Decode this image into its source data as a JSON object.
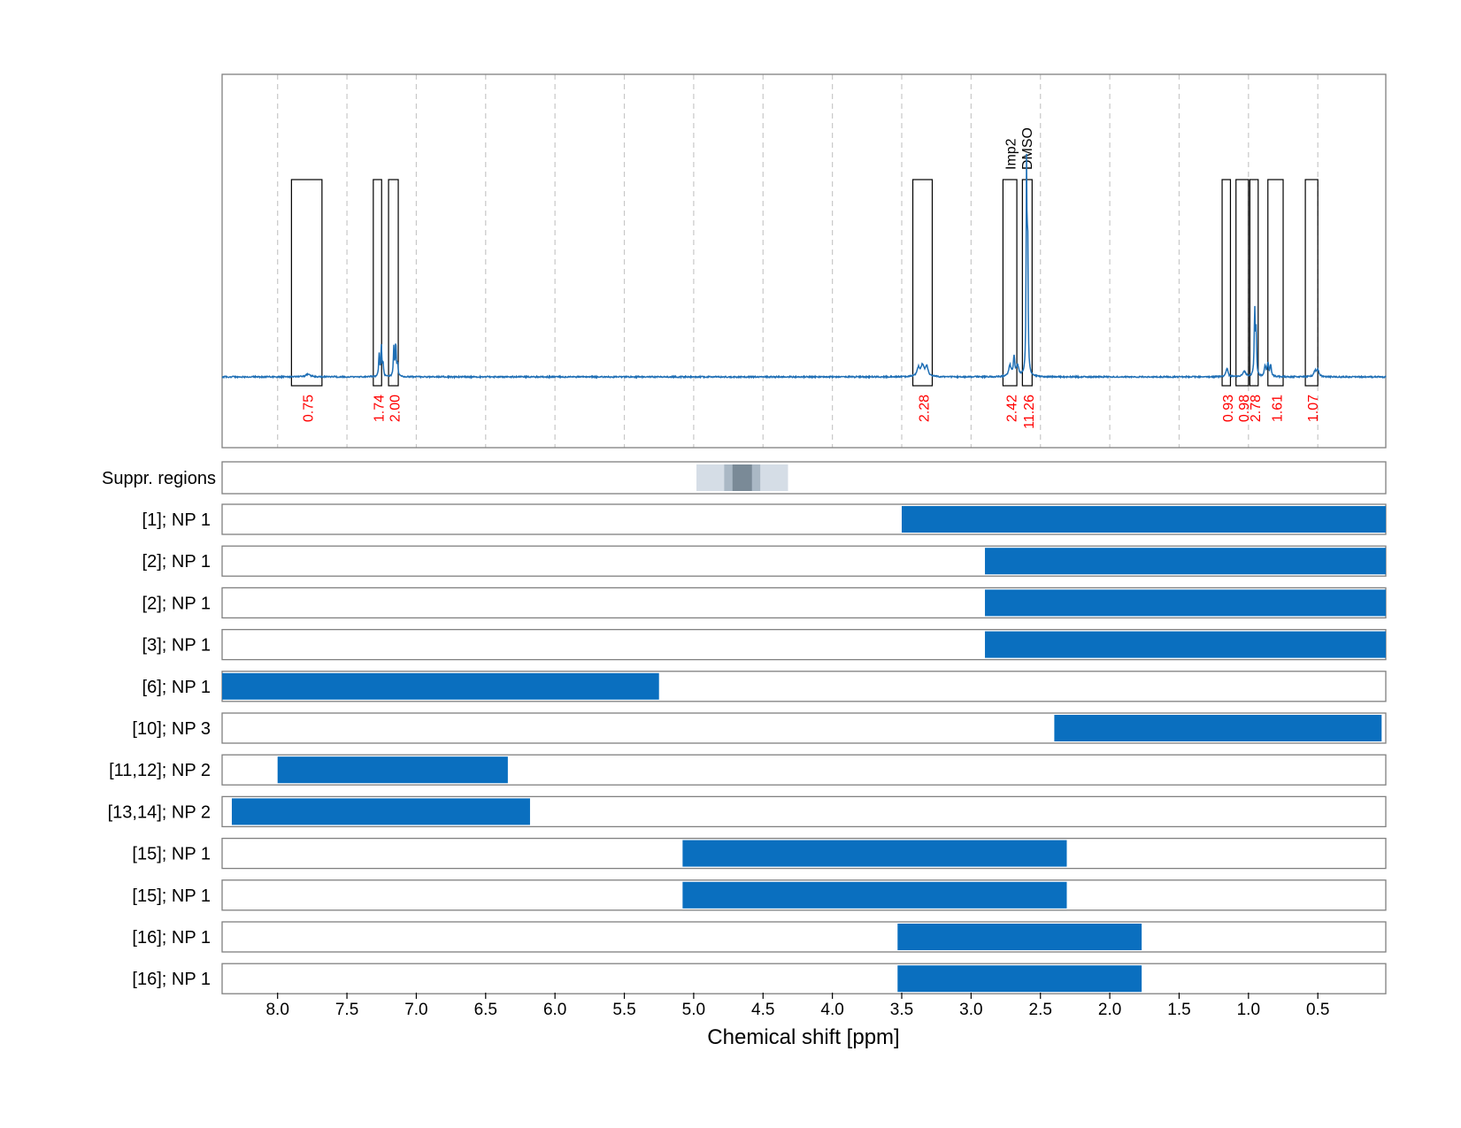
{
  "chart_data": {
    "type": "nmr-spectrum-with-range-bars",
    "xlabel": "Chemical shift [ppm]",
    "xlim": [
      8.4,
      0.01
    ],
    "x_reversed": true,
    "x_ticks": [
      8.0,
      7.5,
      7.0,
      6.5,
      6.0,
      5.5,
      5.0,
      4.5,
      4.0,
      3.5,
      3.0,
      2.5,
      2.0,
      1.5,
      1.0,
      0.5
    ],
    "x_tick_labels": [
      "8.0",
      "7.5",
      "7.0",
      "6.5",
      "6.0",
      "5.5",
      "5.0",
      "4.5",
      "4.0",
      "3.5",
      "3.0",
      "2.5",
      "2.0",
      "1.5",
      "1.0",
      "0.5"
    ],
    "grid": true,
    "spectrum": {
      "color": "#1f6fb5",
      "peaks": [
        {
          "x": 7.78,
          "h": 0.012,
          "w": 0.02
        },
        {
          "x": 7.268,
          "h": 0.1,
          "w": 0.004
        },
        {
          "x": 7.252,
          "h": 0.14,
          "w": 0.004
        },
        {
          "x": 7.24,
          "h": 0.06,
          "w": 0.004
        },
        {
          "x": 7.162,
          "h": 0.13,
          "w": 0.004
        },
        {
          "x": 7.148,
          "h": 0.15,
          "w": 0.004
        },
        {
          "x": 7.135,
          "h": 0.06,
          "w": 0.004
        },
        {
          "x": 3.38,
          "h": 0.04,
          "w": 0.012
        },
        {
          "x": 3.35,
          "h": 0.05,
          "w": 0.012
        },
        {
          "x": 3.32,
          "h": 0.045,
          "w": 0.012
        },
        {
          "x": 2.72,
          "h": 0.05,
          "w": 0.01
        },
        {
          "x": 2.69,
          "h": 0.085,
          "w": 0.006
        },
        {
          "x": 2.665,
          "h": 0.05,
          "w": 0.01
        },
        {
          "x": 2.6,
          "h": 0.93,
          "w": 0.0035
        },
        {
          "x": 2.592,
          "h": 0.6,
          "w": 0.0035
        },
        {
          "x": 1.155,
          "h": 0.04,
          "w": 0.008
        },
        {
          "x": 1.03,
          "h": 0.025,
          "w": 0.012
        },
        {
          "x": 0.955,
          "h": 0.3,
          "w": 0.004
        },
        {
          "x": 0.945,
          "h": 0.2,
          "w": 0.004
        },
        {
          "x": 0.88,
          "h": 0.05,
          "w": 0.006
        },
        {
          "x": 0.86,
          "h": 0.06,
          "w": 0.006
        },
        {
          "x": 0.84,
          "h": 0.05,
          "w": 0.006
        },
        {
          "x": 0.52,
          "h": 0.025,
          "w": 0.01
        },
        {
          "x": 0.5,
          "h": 0.03,
          "w": 0.01
        }
      ]
    },
    "integration_regions": [
      {
        "x1": 7.9,
        "x2": 7.68,
        "value": "0.75"
      },
      {
        "x1": 7.31,
        "x2": 7.25,
        "value": "1.74"
      },
      {
        "x1": 7.2,
        "x2": 7.13,
        "value": "2.00"
      },
      {
        "x1": 3.42,
        "x2": 3.28,
        "value": "2.28"
      },
      {
        "x1": 2.77,
        "x2": 2.67,
        "value": "2.42"
      },
      {
        "x1": 2.63,
        "x2": 2.56,
        "value": "11.26"
      },
      {
        "x1": 1.19,
        "x2": 1.13,
        "value": "0.93"
      },
      {
        "x1": 1.09,
        "x2": 1.0,
        "value": "0.98"
      },
      {
        "x1": 0.99,
        "x2": 0.93,
        "value": "2.78"
      },
      {
        "x1": 0.86,
        "x2": 0.75,
        "value": "1.61"
      },
      {
        "x1": 0.59,
        "x2": 0.5,
        "value": "1.07"
      }
    ],
    "peak_annotations": [
      {
        "x": 2.72,
        "label": "Imp2"
      },
      {
        "x": 2.6,
        "label": "DMSO"
      }
    ],
    "suppression_region": {
      "label": "Suppr. regions",
      "bands": [
        {
          "x1": 4.98,
          "x2": 4.32,
          "color": "#d5dde6"
        },
        {
          "x1": 4.78,
          "x2": 4.52,
          "color": "#aab8c5"
        },
        {
          "x1": 4.72,
          "x2": 4.58,
          "color": "#7a8a97"
        }
      ]
    },
    "range_bars": [
      {
        "label": "[1]; NP 1",
        "x1": 3.5,
        "x2": 0.01
      },
      {
        "label": "[2]; NP 1",
        "x1": 2.9,
        "x2": 0.01
      },
      {
        "label": "[2]; NP 1",
        "x1": 2.9,
        "x2": 0.01
      },
      {
        "label": "[3]; NP 1",
        "x1": 2.9,
        "x2": 0.01
      },
      {
        "label": "[6]; NP 1",
        "x1": 8.4,
        "x2": 5.25
      },
      {
        "label": "[10]; NP 3",
        "x1": 2.4,
        "x2": 0.04
      },
      {
        "label": "[11,12]; NP 2",
        "x1": 8.0,
        "x2": 6.34
      },
      {
        "label": "[13,14]; NP 2",
        "x1": 8.33,
        "x2": 6.18
      },
      {
        "label": "[15]; NP 1",
        "x1": 5.08,
        "x2": 2.31
      },
      {
        "label": "[15]; NP 1",
        "x1": 5.08,
        "x2": 2.31
      },
      {
        "label": "[16]; NP 1",
        "x1": 3.53,
        "x2": 1.77
      },
      {
        "label": "[16]; NP 1",
        "x1": 3.53,
        "x2": 1.77
      }
    ],
    "colors": {
      "bar": "#0a6fbf",
      "integral_label": "#ff0000",
      "grid": "#c8c8c8",
      "frame": "#808080"
    }
  }
}
